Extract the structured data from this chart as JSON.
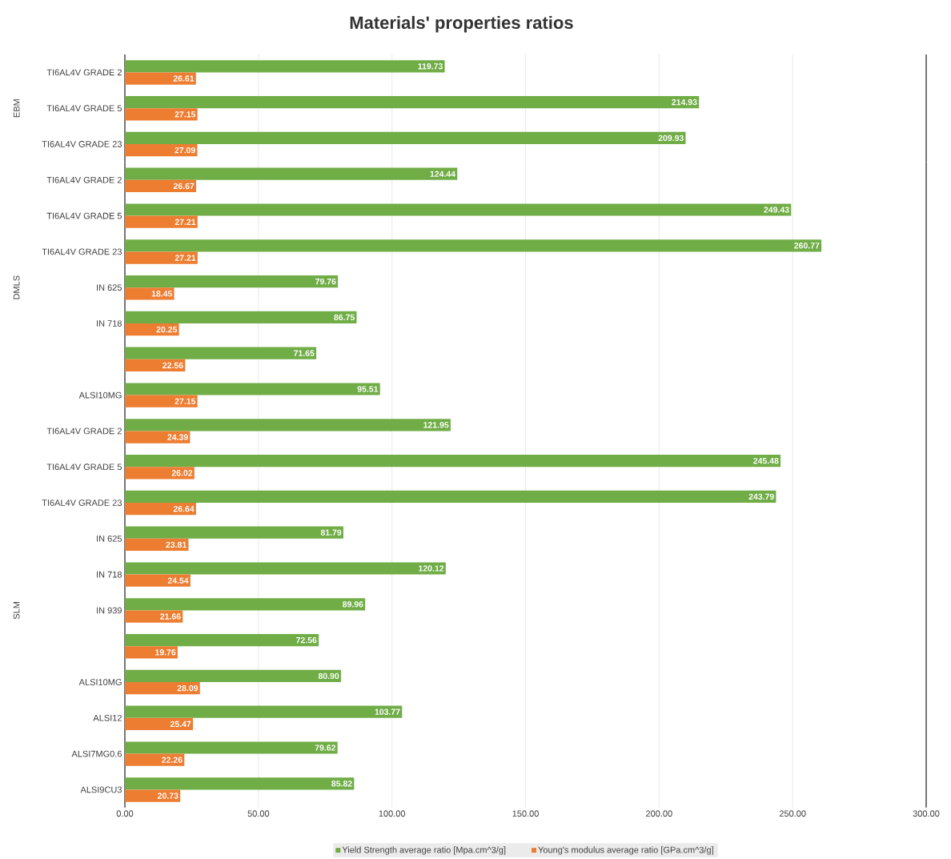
{
  "chart_data": [
    {
      "type": "bar",
      "orientation": "horizontal",
      "title": "Materials' properties ratios",
      "ylabel": "EBM",
      "categories": [
        "TI6AL4V GRADE 2",
        "TI6AL4V GRADE 5",
        "TI6AL4V GRADE 23"
      ],
      "series": [
        {
          "color": "#70ad47",
          "values": [
            119.73,
            214.93,
            209.93
          ],
          "value_labels": [
            "119.73",
            "214.93",
            "209.93"
          ]
        },
        {
          "color": "#ed7d31",
          "values": [
            26.61,
            27.15,
            27.09
          ],
          "value_labels": [
            "26.61",
            "27.15",
            "27.09"
          ]
        }
      ],
      "xlim": [
        0,
        300
      ],
      "xticks": [
        {
          "value": 0,
          "label": null
        },
        {
          "value": 50,
          "label": null
        },
        {
          "value": 100,
          "label": null
        },
        {
          "value": 150,
          "label": null
        },
        {
          "value": 200,
          "label": null
        },
        {
          "value": 250,
          "label": null
        },
        {
          "value": 300,
          "label": null
        }
      ],
      "grid": "x",
      "tick_labels": "y"
    },
    {
      "type": "bar",
      "orientation": "horizontal",
      "ylabel": "DMLS",
      "categories": [
        "TI6AL4V GRADE 2",
        "TI6AL4V GRADE 5",
        "TI6AL4V GRADE 23",
        "IN 625",
        "IN 718",
        null,
        "ALSI10MG"
      ],
      "series": [
        {
          "color": "#70ad47",
          "values": [
            124.44,
            249.43,
            260.77,
            79.76,
            86.75,
            71.65,
            95.51
          ],
          "value_labels": [
            "124.44",
            "249.43",
            "260.77",
            "79.76",
            "86.75",
            "71.65",
            "95.51"
          ]
        },
        {
          "color": "#ed7d31",
          "values": [
            26.67,
            27.21,
            27.21,
            18.45,
            20.25,
            22.56,
            27.15
          ],
          "value_labels": [
            "26.67",
            "27.21",
            "27.21",
            "18.45",
            "20.25",
            "22.56",
            "27.15"
          ]
        }
      ],
      "xlim": [
        0,
        300
      ],
      "xticks": [
        {
          "value": 0,
          "label": null
        },
        {
          "value": 50,
          "label": null
        },
        {
          "value": 100,
          "label": null
        },
        {
          "value": 150,
          "label": null
        },
        {
          "value": 200,
          "label": null
        },
        {
          "value": 250,
          "label": null
        },
        {
          "value": 300,
          "label": null
        }
      ],
      "grid": "x",
      "tick_labels": "y"
    },
    {
      "type": "bar",
      "orientation": "horizontal",
      "ylabel": "SLM",
      "categories": [
        "TI6AL4V GRADE 2",
        "TI6AL4V GRADE 5",
        "TI6AL4V GRADE 23",
        "IN 625",
        "IN 718",
        "IN 939",
        null,
        "ALSI10MG",
        "ALSI12",
        "ALSI7MG0.6",
        "ALSI9CU3"
      ],
      "series": [
        {
          "name": "Yield Strength average ratio [Mpa.cm^3/g]",
          "color": "#70ad47",
          "values": [
            121.95,
            245.48,
            243.79,
            81.79,
            120.12,
            89.96,
            72.56,
            80.9,
            103.77,
            79.62,
            85.82
          ],
          "value_labels": [
            "121.95",
            "245.48",
            "243.79",
            "81.79",
            "120.12",
            "89.96",
            "72.56",
            "80.90",
            "103.77",
            "79.62",
            "85.82"
          ]
        },
        {
          "name": "Young's modulus average ratio [GPa.cm^3/g]",
          "color": "#ed7d31",
          "values": [
            24.39,
            26.02,
            26.64,
            23.81,
            24.54,
            21.66,
            19.76,
            28.09,
            25.47,
            22.26,
            20.73
          ],
          "value_labels": [
            "24.39",
            "26.02",
            "26.64",
            "23.81",
            "24.54",
            "21.66",
            "19.76",
            "28.09",
            "25.47",
            "22.26",
            "20.73"
          ]
        }
      ],
      "xlim": [
        0,
        300
      ],
      "xticks": [
        {
          "value": 0,
          "label": "0.00"
        },
        {
          "value": 50,
          "label": "50.00"
        },
        {
          "value": 100,
          "label": "100.00"
        },
        {
          "value": 150,
          "label": "150.00"
        },
        {
          "value": 200,
          "label": "200.00"
        },
        {
          "value": 250,
          "label": "250.00"
        },
        {
          "value": 300,
          "label": "300.00"
        }
      ],
      "grid": "x",
      "legend": "bottom"
    }
  ]
}
